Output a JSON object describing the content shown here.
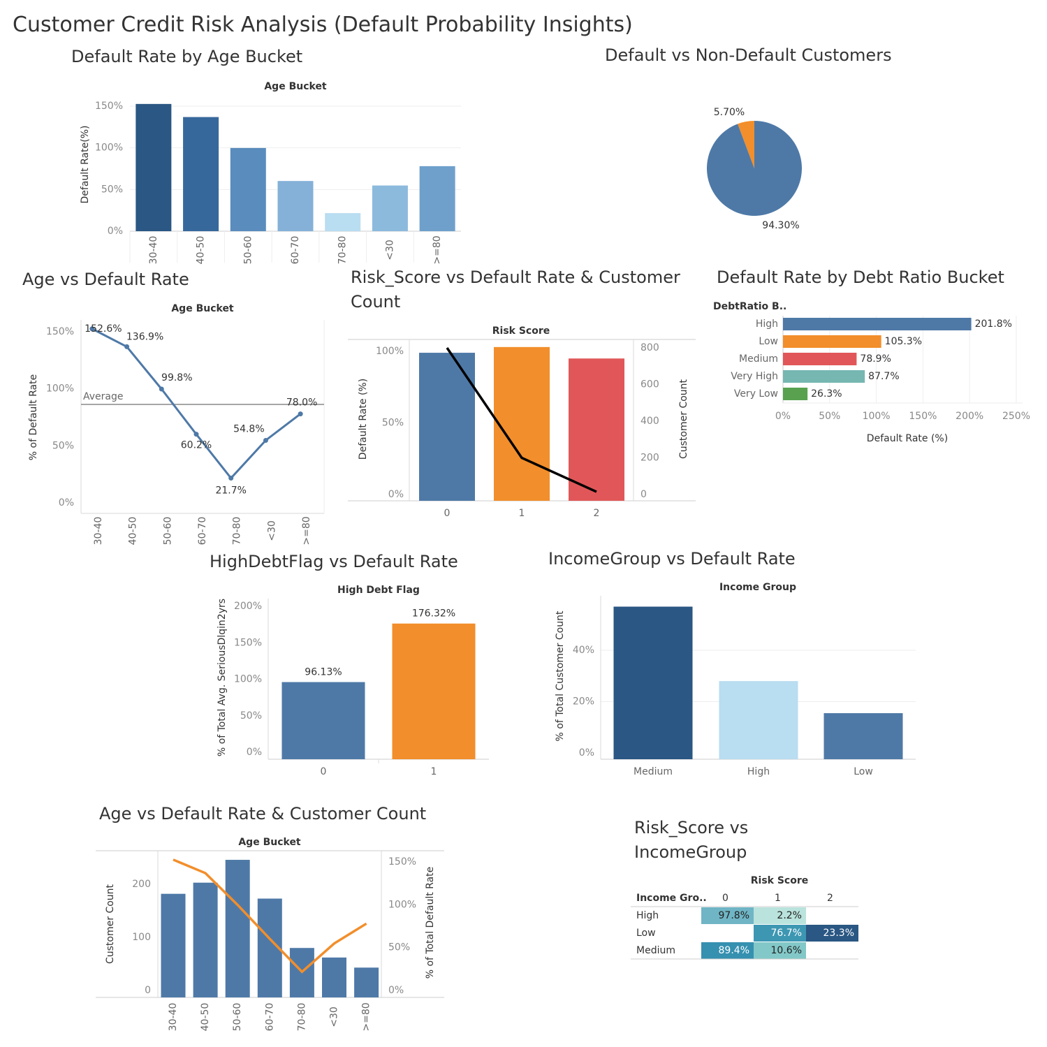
{
  "dashboard_title": "Customer Credit Risk Analysis (Default Probability Insights)",
  "titles": {
    "age_bucket_bar": "Default Rate by Age Bucket",
    "pie": "Default vs Non-Default Customers",
    "age_line": "Age vs Default Rate",
    "risk_combo": "Risk_Score vs Default Rate & Customer Count",
    "debt_ratio": "Default Rate by Debt Ratio Bucket",
    "high_debt": "HighDebtFlag vs Default Rate",
    "income_group": "IncomeGroup vs Default Rate",
    "age_combo": "Age vs Default Rate & Customer Count",
    "risk_income": "Risk_Score vs IncomeGroup"
  },
  "colors": {
    "tableau_blue": "#4e79a7",
    "orange": "#f28e2b",
    "red": "#e15759",
    "teal": "#76b7b2",
    "green": "#59a14f",
    "dark_blue": "#2a5783",
    "light_blue": "#b9ddf1"
  },
  "chart_data": [
    {
      "id": "age_bucket_bar",
      "type": "bar",
      "title": "Default Rate by Age Bucket",
      "header": "Age Bucket",
      "ylabel": "Default Rate(%)",
      "categories": [
        "30-40",
        "40-50",
        "50-60",
        "60-70",
        "70-80",
        "<30",
        ">=80"
      ],
      "values": [
        152.6,
        136.9,
        99.8,
        60.2,
        21.7,
        54.8,
        78.0
      ],
      "bar_colors": [
        "#2a5783",
        "#37689c",
        "#5a8cbd",
        "#85b1d8",
        "#b9ddf1",
        "#8cbadd",
        "#6fa0cb"
      ],
      "ylim": [
        0,
        160
      ],
      "yticks": [
        0,
        50,
        100,
        150
      ],
      "ytick_labels": [
        "0%",
        "50%",
        "100%",
        "150%"
      ]
    },
    {
      "id": "pie",
      "type": "pie",
      "title": "Default vs Non-Default Customers",
      "slices": [
        {
          "value": 94.3,
          "label": "94.30%",
          "color": "#4e79a7"
        },
        {
          "value": 5.7,
          "label": "5.70%",
          "color": "#f28e2b"
        }
      ]
    },
    {
      "id": "age_line",
      "type": "line",
      "title": "Age vs Default Rate",
      "header": "Age Bucket",
      "ylabel": "% of Default Rate",
      "categories": [
        "30-40",
        "40-50",
        "50-60",
        "60-70",
        "70-80",
        "<30",
        ">=80"
      ],
      "values": [
        152.6,
        136.9,
        99.8,
        60.2,
        21.7,
        54.8,
        78.0
      ],
      "data_labels": [
        "152.6%",
        "136.9%",
        "99.8%",
        "60.2%",
        "21.7%",
        "54.8%",
        "78.0%"
      ],
      "reference_line": {
        "label": "Average",
        "value": 86.3
      },
      "ylim": [
        0,
        160
      ],
      "yticks": [
        0,
        50,
        100,
        150
      ],
      "ytick_labels": [
        "0%",
        "50%",
        "100%",
        "150%"
      ]
    },
    {
      "id": "risk_combo",
      "type": "bar",
      "title": "Risk_Score vs Default Rate & Customer Count",
      "header": "Risk Score",
      "ylabel": "Default Rate (%)",
      "y2label": "Customer Count",
      "categories": [
        "0",
        "1",
        "2"
      ],
      "series": [
        {
          "name": "Default Rate (%)",
          "type": "bar",
          "values": [
            99.0,
            103.0,
            95.0
          ],
          "colors": [
            "#4e79a7",
            "#f28e2b",
            "#e15759"
          ]
        },
        {
          "name": "Customer Count",
          "type": "line",
          "values": [
            800,
            200,
            15
          ],
          "color": "#000000"
        }
      ],
      "ylim": [
        0,
        105
      ],
      "yticks": [
        0,
        50,
        100
      ],
      "ytick_labels": [
        "0%",
        "50%",
        "100%"
      ],
      "y2lim": [
        0,
        820
      ],
      "y2ticks": [
        0,
        200,
        400,
        600,
        800
      ],
      "y2tick_labels": [
        "0",
        "200",
        "400",
        "600",
        "800"
      ]
    },
    {
      "id": "debt_ratio",
      "type": "bar",
      "orientation": "horizontal",
      "title": "Default Rate by Debt Ratio Bucket",
      "row_header": "DebtRatio B..",
      "xlabel": "Default Rate (%)",
      "categories": [
        "High",
        "Low",
        "Medium",
        "Very High",
        "Very Low"
      ],
      "values": [
        201.8,
        105.3,
        78.9,
        87.7,
        26.3
      ],
      "data_labels": [
        "201.8%",
        "105.3%",
        "78.9%",
        "87.7%",
        "26.3%"
      ],
      "bar_colors": [
        "#4e79a7",
        "#f28e2b",
        "#e15759",
        "#76b7b2",
        "#59a14f"
      ],
      "xlim": [
        0,
        260
      ],
      "xticks": [
        0,
        50,
        100,
        150,
        200,
        250
      ],
      "xtick_labels": [
        "0%",
        "50%",
        "100%",
        "150%",
        "200%",
        "250%"
      ]
    },
    {
      "id": "high_debt",
      "type": "bar",
      "title": "HighDebtFlag vs Default Rate",
      "header": "High Debt Flag",
      "ylabel": "% of Total Avg. SeriousDlqin2yrs",
      "categories": [
        "0",
        "1"
      ],
      "values": [
        96.13,
        176.32
      ],
      "data_labels": [
        "96.13%",
        "176.32%"
      ],
      "bar_colors": [
        "#4e79a7",
        "#f28e2b"
      ],
      "ylim": [
        0,
        205
      ],
      "yticks": [
        0,
        50,
        100,
        150,
        200
      ],
      "ytick_labels": [
        "0%",
        "50%",
        "100%",
        "150%",
        "200%"
      ]
    },
    {
      "id": "income_group",
      "type": "bar",
      "title": "IncomeGroup vs Default Rate",
      "header": "Income Group",
      "ylabel": "% of Total Customer Count",
      "categories": [
        "Medium",
        "High",
        "Low"
      ],
      "values": [
        57,
        28,
        15.5
      ],
      "bar_colors": [
        "#2a5783",
        "#b9ddf1",
        "#4e79a7"
      ],
      "ylim": [
        0,
        60
      ],
      "yticks": [
        0,
        20,
        40
      ],
      "ytick_labels": [
        "0%",
        "20%",
        "40%"
      ]
    },
    {
      "id": "age_combo",
      "type": "bar",
      "title": "Age vs Default Rate & Customer Count",
      "header": "Age Bucket",
      "ylabel": "Customer Count",
      "y2label": "% of Total Default Rate",
      "categories": [
        "30-40",
        "40-50",
        "50-60",
        "60-70",
        "70-80",
        "<30",
        ">=80"
      ],
      "series": [
        {
          "name": "Customer Count",
          "type": "bar",
          "values": [
            182,
            203,
            246,
            173,
            80,
            62,
            43
          ],
          "color": "#4e79a7"
        },
        {
          "name": "% of Total Default Rate",
          "type": "line",
          "values": [
            152.6,
            136.9,
            99.8,
            60.2,
            21.7,
            54.8,
            78.0
          ],
          "color": "#f28e2b"
        }
      ],
      "ylim": [
        0,
        255
      ],
      "yticks": [
        0,
        100,
        200
      ],
      "ytick_labels": [
        "0",
        "100",
        "200"
      ],
      "y2lim": [
        0,
        160
      ],
      "y2ticks": [
        0,
        50,
        100,
        150
      ],
      "y2tick_labels": [
        "0%",
        "50%",
        "100%",
        "150%"
      ]
    },
    {
      "id": "risk_income",
      "type": "heatmap",
      "title": "Risk_Score vs IncomeGroup",
      "column_header": "Risk Score",
      "row_header": "Income Gro..",
      "columns": [
        "0",
        "1",
        "2"
      ],
      "rows": [
        {
          "label": "High",
          "cells": [
            {
              "text": "97.8%",
              "color": "#6fb5c5",
              "text_color": "#222222"
            },
            {
              "text": "2.2%",
              "color": "#b9e3dc",
              "text_color": "#222222"
            },
            {
              "text": "",
              "color": "",
              "text_color": ""
            }
          ]
        },
        {
          "label": "Low",
          "cells": [
            {
              "text": "",
              "color": "",
              "text_color": ""
            },
            {
              "text": "76.7%",
              "color": "#3d97b3",
              "text_color": "#ffffff"
            },
            {
              "text": "23.3%",
              "color": "#2a5783",
              "text_color": "#ffffff"
            }
          ]
        },
        {
          "label": "Medium",
          "cells": [
            {
              "text": "89.4%",
              "color": "#3690b0",
              "text_color": "#ffffff"
            },
            {
              "text": "10.6%",
              "color": "#83c8c8",
              "text_color": "#222222"
            },
            {
              "text": "",
              "color": "",
              "text_color": ""
            }
          ]
        }
      ]
    }
  ]
}
